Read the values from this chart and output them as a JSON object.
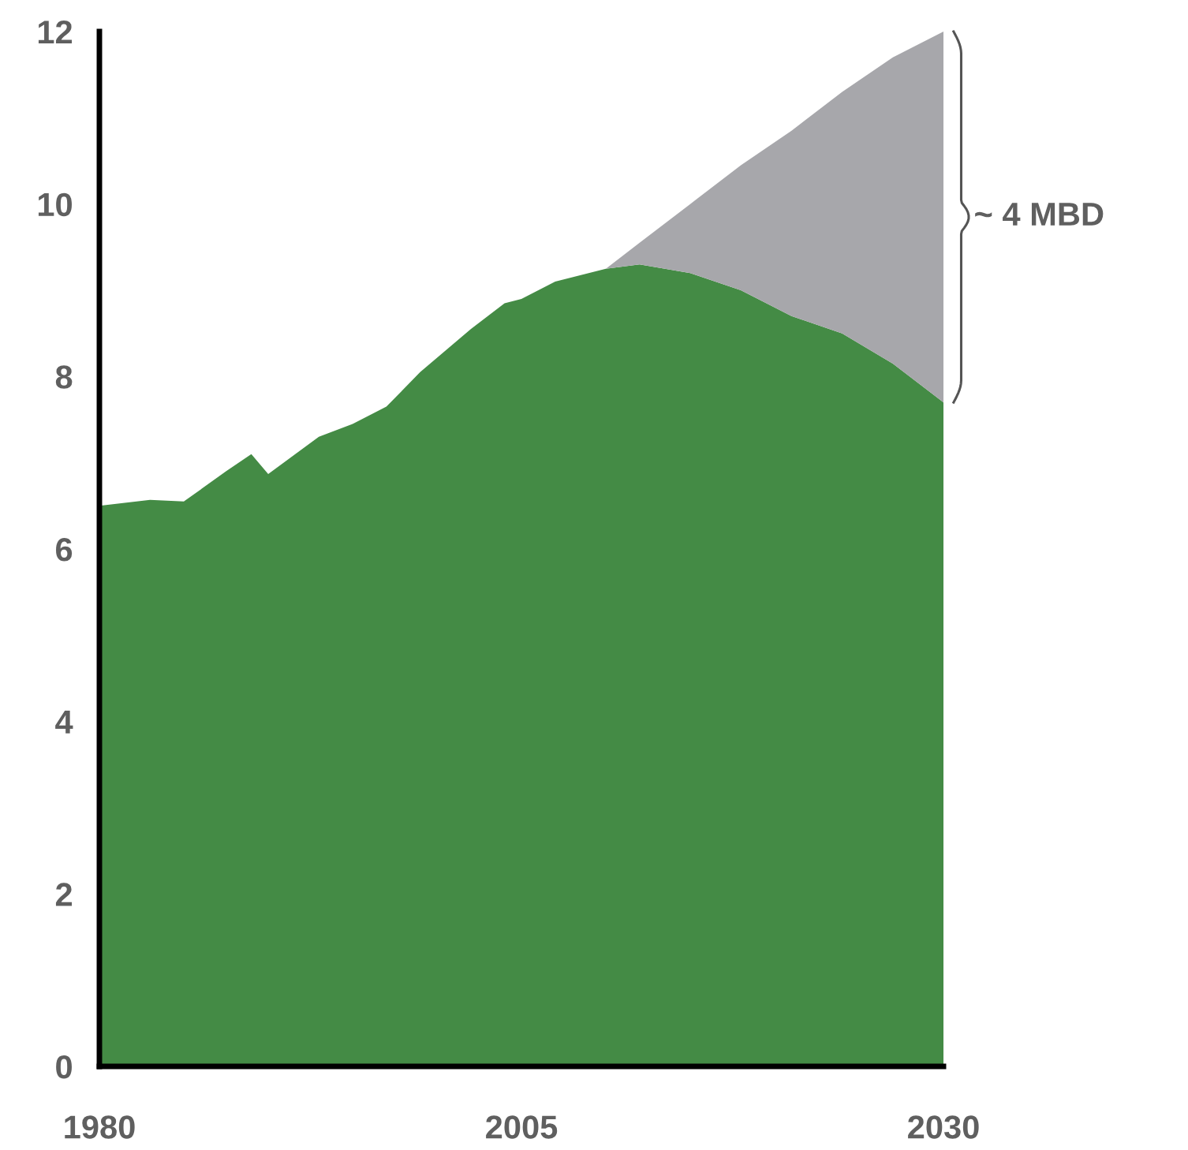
{
  "chart_data": {
    "type": "area",
    "stacked": true,
    "x": [
      1980,
      1983,
      1985,
      1987.5,
      1989,
      1990,
      1993,
      1995,
      1997,
      1999,
      2002,
      2004,
      2005,
      2007,
      2010,
      2012,
      2015,
      2018,
      2021,
      2024,
      2027,
      2030
    ],
    "series": [
      {
        "color": "#448b45",
        "values": [
          6.5,
          6.57,
          6.55,
          6.9,
          7.1,
          6.87,
          7.3,
          7.45,
          7.65,
          8.05,
          8.55,
          8.85,
          8.9,
          9.1,
          9.25,
          9.3,
          9.2,
          9.0,
          8.7,
          8.5,
          8.15,
          7.7
        ]
      },
      {
        "color": "#a7a7ab",
        "values": [
          null,
          null,
          null,
          null,
          null,
          null,
          null,
          null,
          null,
          null,
          null,
          null,
          null,
          null,
          0,
          0.25,
          0.8,
          1.45,
          2.15,
          2.8,
          3.55,
          4.3
        ]
      }
    ],
    "xlim": [
      1980,
      2030
    ],
    "xticks": [
      1980,
      2005,
      2030
    ],
    "ylim": [
      0,
      12
    ],
    "yticks": [
      0,
      2,
      4,
      6,
      8,
      10,
      12
    ],
    "grid": false,
    "legend": false,
    "annotations": [
      "~ 4 MBD"
    ]
  }
}
